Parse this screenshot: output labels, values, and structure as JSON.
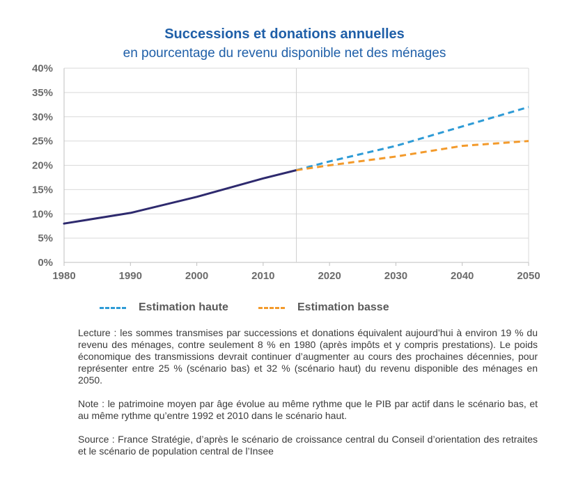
{
  "chart_data": {
    "type": "line",
    "title": "Successions et donations annuelles",
    "subtitle": "en pourcentage du revenu disponible net des ménages",
    "x_ticks": [
      "1980",
      "1990",
      "2000",
      "2010",
      "2020",
      "2030",
      "2040",
      "2050"
    ],
    "y_ticks": [
      "0%",
      "5%",
      "10%",
      "15%",
      "20%",
      "25%",
      "30%",
      "35%",
      "40%"
    ],
    "xlim": [
      1980,
      2050
    ],
    "ylim": [
      0,
      40
    ],
    "grid": "horizontal",
    "vertical_marker_x": 2015,
    "legend_position": "bottom",
    "series": [
      {
        "color": "#2e2a6e",
        "dash": "solid",
        "points": [
          [
            1980,
            8
          ],
          [
            1990,
            10.2
          ],
          [
            2000,
            13.5
          ],
          [
            2010,
            17.3
          ],
          [
            2015,
            19
          ]
        ]
      },
      {
        "name": "Estimation haute",
        "color": "#2e9bd6",
        "dash": "dashed",
        "points": [
          [
            2015,
            19
          ],
          [
            2020,
            20.8
          ],
          [
            2030,
            24
          ],
          [
            2040,
            28
          ],
          [
            2050,
            32
          ]
        ]
      },
      {
        "name": "Estimation basse",
        "color": "#f39a2b",
        "dash": "dashed",
        "points": [
          [
            2015,
            19
          ],
          [
            2020,
            20
          ],
          [
            2030,
            21.8
          ],
          [
            2040,
            24
          ],
          [
            2050,
            25
          ]
        ]
      }
    ]
  },
  "legend": {
    "high_label": "Estimation haute",
    "low_label": "Estimation basse"
  },
  "notes": {
    "lecture": "Lecture : les sommes transmises par successions et donations équivalent aujourd’hui à environ 19 % du revenu des ménages, contre seulement 8 % en 1980 (après impôts et y compris prestations). Le poids économique des transmissions devrait continuer d’augmenter au cours des prochaines décennies, pour représenter entre 25 % (scénario bas) et 32 % (scénario haut) du revenu disponible des ménages en 2050.",
    "note": "Note : le patrimoine moyen par âge évolue au même rythme que le PIB par actif dans le scénario bas, et au même rythme qu’entre 1992 et 2010 dans le scénario haut.",
    "source": "Source : France Stratégie, d’après le scénario de croissance central du Conseil d’orientation des retraites et le scénario de population central de l’Insee"
  }
}
